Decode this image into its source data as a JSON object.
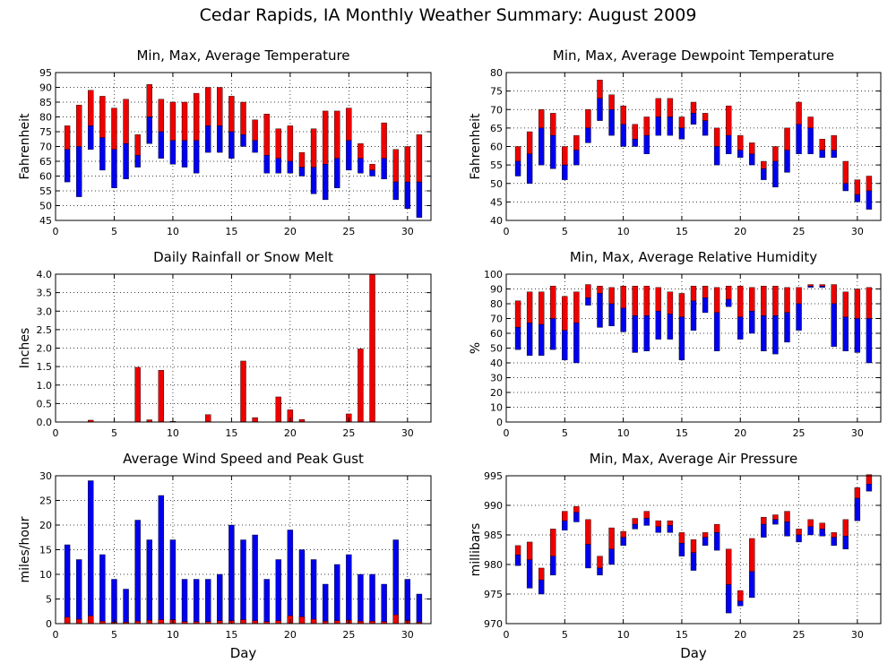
{
  "title": "Cedar Rapids, IA Monthly Weather Summary: August 2009",
  "colors": {
    "max": "#ee0000",
    "min": "#0000ee",
    "axis": "#000000",
    "grid": "#000000"
  },
  "chart_data": [
    {
      "type": "bar",
      "style": "floating-range",
      "title": "Min, Max, Average Temperature",
      "ylabel": "Fahrenheit",
      "xlabel": "",
      "xlim": [
        0,
        32
      ],
      "xticks": [
        0,
        5,
        10,
        15,
        20,
        25,
        30
      ],
      "ylim": [
        45,
        95
      ],
      "yticks": [
        45,
        50,
        55,
        60,
        65,
        70,
        75,
        80,
        85,
        90,
        95
      ],
      "grid": true,
      "x": [
        1,
        2,
        3,
        4,
        5,
        6,
        7,
        8,
        9,
        10,
        11,
        12,
        13,
        14,
        15,
        16,
        17,
        18,
        19,
        20,
        21,
        22,
        23,
        24,
        25,
        26,
        27,
        28,
        29,
        30,
        31
      ],
      "series": [
        {
          "key": "max",
          "values": [
            77,
            84,
            89,
            87,
            83,
            86,
            74,
            91,
            86,
            85,
            85,
            88,
            90,
            90,
            87,
            85,
            79,
            81,
            76,
            77,
            68,
            76,
            82,
            82,
            83,
            71,
            64,
            78,
            69,
            70,
            74
          ]
        },
        {
          "key": "avg",
          "values": [
            69,
            70,
            77,
            73,
            69,
            71,
            67,
            80,
            75,
            72,
            72,
            72,
            77,
            77,
            75,
            74,
            72,
            67,
            66,
            65,
            63,
            63,
            64,
            66,
            72,
            66,
            62,
            66,
            58,
            58,
            58
          ]
        },
        {
          "key": "min",
          "values": [
            58,
            53,
            69,
            62,
            56,
            59,
            63,
            71,
            66,
            64,
            63,
            61,
            68,
            68,
            66,
            70,
            68,
            61,
            61,
            61,
            60,
            54,
            52,
            56,
            62,
            61,
            60,
            59,
            52,
            49,
            46
          ]
        }
      ]
    },
    {
      "type": "bar",
      "style": "floating-range",
      "title": "Min, Max, Average Dewpoint Temperature",
      "ylabel": "Fahrenheit",
      "xlabel": "",
      "xlim": [
        0,
        32
      ],
      "xticks": [
        0,
        5,
        10,
        15,
        20,
        25,
        30
      ],
      "ylim": [
        40,
        80
      ],
      "yticks": [
        40,
        45,
        50,
        55,
        60,
        65,
        70,
        75,
        80
      ],
      "grid": true,
      "x": [
        1,
        2,
        3,
        4,
        5,
        6,
        7,
        8,
        9,
        10,
        11,
        12,
        13,
        14,
        15,
        16,
        17,
        18,
        19,
        20,
        21,
        22,
        23,
        24,
        25,
        26,
        27,
        28,
        29,
        30,
        31
      ],
      "series": [
        {
          "key": "max",
          "values": [
            60,
            64,
            70,
            69,
            60,
            63,
            70,
            78,
            74,
            71,
            66,
            68,
            73,
            73,
            68,
            72,
            69,
            65,
            71,
            63,
            61,
            56,
            60,
            65,
            72,
            68,
            62,
            63,
            56,
            51,
            52
          ]
        },
        {
          "key": "avg",
          "values": [
            56,
            58,
            65,
            63,
            55,
            59,
            65,
            73,
            70,
            66,
            62,
            63,
            68,
            68,
            65,
            69,
            67,
            60,
            63,
            59,
            58,
            54,
            56,
            59,
            66,
            65,
            59,
            59,
            50,
            47,
            48
          ]
        },
        {
          "key": "min",
          "values": [
            52,
            50,
            55,
            54,
            51,
            55,
            61,
            67,
            63,
            60,
            60,
            58,
            63,
            63,
            62,
            66,
            63,
            55,
            58,
            57,
            55,
            51,
            49,
            53,
            58,
            58,
            57,
            57,
            48,
            45,
            43
          ]
        }
      ]
    },
    {
      "type": "bar",
      "title": "Daily Rainfall or Snow Melt",
      "ylabel": "Inches",
      "xlabel": "",
      "xlim": [
        0,
        32
      ],
      "xticks": [
        0,
        5,
        10,
        15,
        20,
        25,
        30
      ],
      "ylim": [
        0,
        4.0
      ],
      "yticks": [
        0.0,
        0.5,
        1.0,
        1.5,
        2.0,
        2.5,
        3.0,
        3.5,
        4.0
      ],
      "grid": true,
      "x": [
        1,
        2,
        3,
        4,
        5,
        6,
        7,
        8,
        9,
        10,
        11,
        12,
        13,
        14,
        15,
        16,
        17,
        18,
        19,
        20,
        21,
        22,
        23,
        24,
        25,
        26,
        27,
        28,
        29,
        30,
        31
      ],
      "series": [
        {
          "key": "max",
          "values": [
            0,
            0,
            0.05,
            0,
            0,
            0,
            1.48,
            0.06,
            1.4,
            0.02,
            0,
            0,
            0.2,
            0,
            0,
            1.65,
            0.12,
            0,
            0.68,
            0.33,
            0.07,
            0,
            0,
            0,
            0.22,
            1.98,
            4.0,
            0,
            0,
            0,
            0
          ]
        }
      ]
    },
    {
      "type": "bar",
      "style": "floating-range",
      "title": "Min, Max, Average Relative Humidity",
      "ylabel": "%",
      "xlabel": "",
      "xlim": [
        0,
        32
      ],
      "xticks": [
        0,
        5,
        10,
        15,
        20,
        25,
        30
      ],
      "ylim": [
        0,
        100
      ],
      "yticks": [
        0,
        10,
        20,
        30,
        40,
        50,
        60,
        70,
        80,
        90,
        100
      ],
      "grid": true,
      "x": [
        1,
        2,
        3,
        4,
        5,
        6,
        7,
        8,
        9,
        10,
        11,
        12,
        13,
        14,
        15,
        16,
        17,
        18,
        19,
        20,
        21,
        22,
        23,
        24,
        25,
        26,
        27,
        28,
        29,
        30,
        31
      ],
      "series": [
        {
          "key": "max",
          "values": [
            82,
            88,
            88,
            92,
            85,
            88,
            93,
            92,
            91,
            92,
            92,
            92,
            91,
            88,
            87,
            92,
            92,
            91,
            92,
            92,
            91,
            92,
            92,
            91,
            91,
            93,
            93,
            93,
            88,
            90,
            91
          ]
        },
        {
          "key": "avg",
          "values": [
            64,
            67,
            66,
            70,
            62,
            67,
            84,
            87,
            80,
            77,
            72,
            72,
            75,
            73,
            71,
            82,
            84,
            74,
            83,
            71,
            75,
            72,
            72,
            74,
            80,
            92,
            92,
            80,
            71,
            70,
            70
          ]
        },
        {
          "key": "min",
          "values": [
            49,
            45,
            45,
            49,
            42,
            40,
            79,
            64,
            65,
            61,
            47,
            48,
            56,
            56,
            42,
            62,
            74,
            48,
            78,
            56,
            60,
            48,
            46,
            54,
            62,
            91,
            91,
            51,
            48,
            47,
            40
          ]
        }
      ]
    },
    {
      "type": "bar",
      "title": "Average Wind Speed and Peak Gust",
      "ylabel": "miles/hour",
      "xlabel": "Day",
      "xlim": [
        0,
        32
      ],
      "xticks": [
        0,
        5,
        10,
        15,
        20,
        25,
        30
      ],
      "ylim": [
        0,
        30
      ],
      "yticks": [
        0,
        5,
        10,
        15,
        20,
        25,
        30
      ],
      "grid": true,
      "x": [
        1,
        2,
        3,
        4,
        5,
        6,
        7,
        8,
        9,
        10,
        11,
        12,
        13,
        14,
        15,
        16,
        17,
        18,
        19,
        20,
        21,
        22,
        23,
        24,
        25,
        26,
        27,
        28,
        29,
        30,
        31
      ],
      "series": [
        {
          "key": "min",
          "values": [
            16,
            13,
            29,
            14,
            9,
            7,
            21,
            17,
            26,
            17,
            9,
            9,
            9,
            10,
            20,
            17,
            18,
            9,
            13,
            19,
            15,
            13,
            8,
            12,
            14,
            10,
            10,
            8,
            17,
            9,
            6
          ]
        },
        {
          "key": "max",
          "values": [
            1.3,
            0.9,
            1.6,
            0.5,
            0.3,
            0.3,
            0.5,
            0.7,
            0.8,
            0.8,
            0.4,
            0.4,
            0.4,
            0.6,
            0.6,
            0.8,
            0.6,
            0.4,
            0.6,
            1.6,
            1.4,
            0.9,
            0.5,
            0.6,
            0.7,
            0.5,
            0.5,
            0.4,
            1.8,
            0.6,
            0.3
          ]
        }
      ]
    },
    {
      "type": "bar",
      "style": "floating-range",
      "title": "Min, Max, Average Air Pressure",
      "ylabel": "millibars",
      "xlabel": "Day",
      "xlim": [
        0,
        32
      ],
      "xticks": [
        0,
        5,
        10,
        15,
        20,
        25,
        30
      ],
      "ylim": [
        970,
        995
      ],
      "yticks": [
        970,
        975,
        980,
        985,
        990,
        995
      ],
      "grid": true,
      "x": [
        1,
        2,
        3,
        4,
        5,
        6,
        7,
        8,
        9,
        10,
        11,
        12,
        13,
        14,
        15,
        16,
        17,
        18,
        19,
        20,
        21,
        22,
        23,
        24,
        25,
        26,
        27,
        28,
        29,
        30,
        31
      ],
      "series": [
        {
          "key": "max",
          "values": [
            983.2,
            983.8,
            979.4,
            986.0,
            989.0,
            989.8,
            987.6,
            981.4,
            986.2,
            985.6,
            987.8,
            989.0,
            987.4,
            987.4,
            985.4,
            984.2,
            985.4,
            986.8,
            982.6,
            975.6,
            984.4,
            988.0,
            988.4,
            989.0,
            986.0,
            987.6,
            987.0,
            985.4,
            987.6,
            993.0,
            995.2
          ]
        },
        {
          "key": "avg",
          "values": [
            981.6,
            980.8,
            977.4,
            981.4,
            987.4,
            988.8,
            983.4,
            979.4,
            982.6,
            984.6,
            986.8,
            987.8,
            986.4,
            986.6,
            983.6,
            982.0,
            984.6,
            985.4,
            976.6,
            973.8,
            978.8,
            986.8,
            987.6,
            987.2,
            985.0,
            986.4,
            986.0,
            984.6,
            984.8,
            991.2,
            993.6
          ]
        },
        {
          "key": "min",
          "values": [
            979.8,
            976.0,
            975.0,
            978.2,
            985.8,
            987.2,
            979.4,
            978.2,
            980.0,
            983.2,
            986.0,
            986.6,
            985.4,
            985.4,
            981.4,
            979.0,
            983.2,
            982.4,
            971.8,
            973.0,
            974.4,
            984.6,
            986.8,
            984.8,
            983.8,
            985.0,
            984.8,
            983.2,
            982.6,
            987.4,
            992.4
          ]
        }
      ]
    }
  ]
}
